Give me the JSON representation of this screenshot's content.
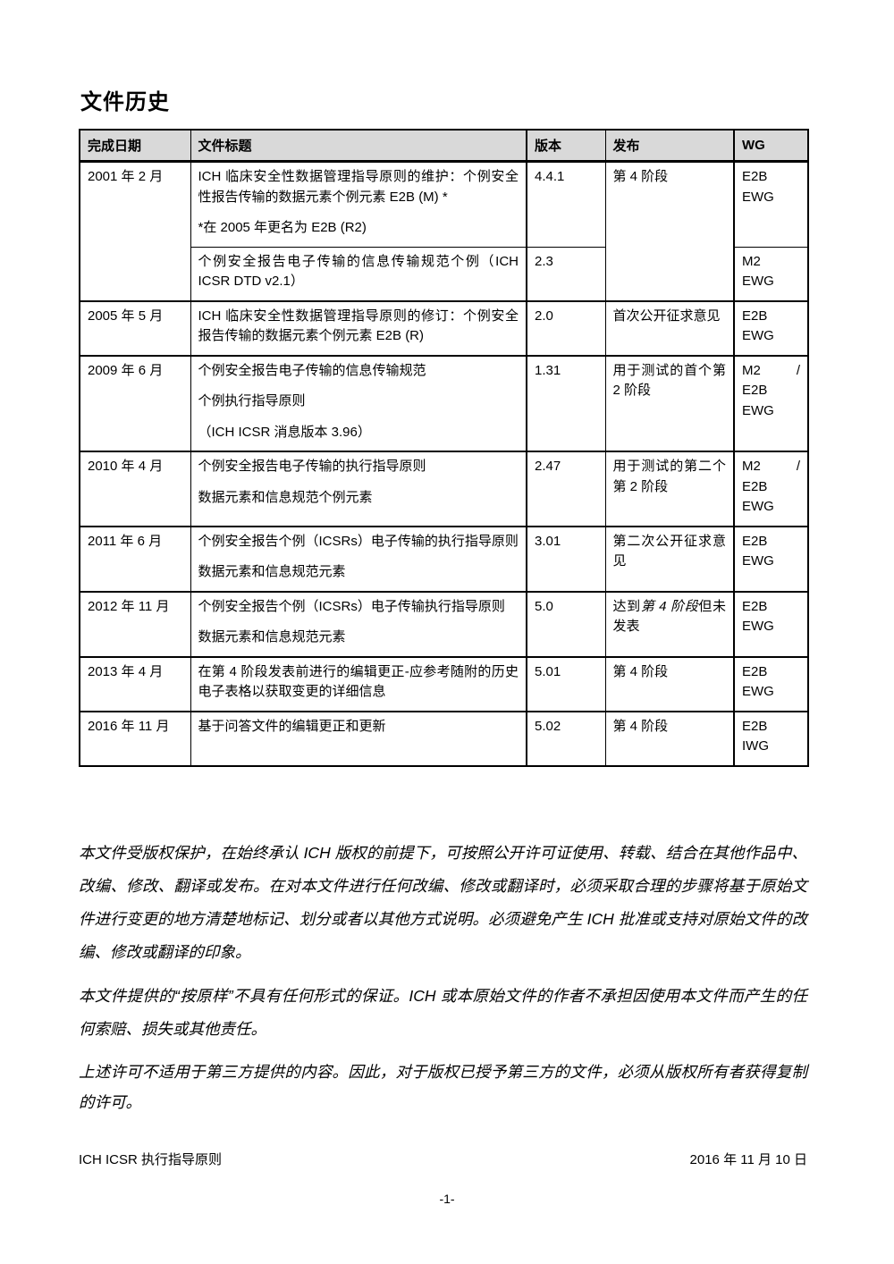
{
  "page_title": "文件历史",
  "colors": {
    "header_bg": "#d9d9d9",
    "border": "#000000",
    "text": "#000000"
  },
  "table": {
    "headers": [
      "完成日期",
      "文件标题",
      "版本",
      "发布",
      "WG"
    ],
    "rows": [
      {
        "group_start": true,
        "cells": {
          "date": {
            "text": "2001 年 2 月",
            "rowspan": 2
          },
          "title": {
            "paragraphs": [
              "ICH 临床安全性数据管理指导原则的维护：个例安全性报告传输的数据元素个例元素 E2B (M) *",
              "*在 2005 年更名为 E2B (R2)"
            ]
          },
          "version": {
            "text": "4.4.1"
          },
          "release": {
            "text": "第 4 阶段",
            "rowspan": 2
          },
          "wg": {
            "lines": [
              [
                "E2B"
              ],
              [
                "EWG"
              ]
            ]
          }
        }
      },
      {
        "cells": {
          "title": {
            "paragraphs": [
              "个例安全报告电子传输的信息传输规范个例（ICH ICSR DTD v2.1）"
            ]
          },
          "version": {
            "text": "2.3"
          },
          "wg": {
            "lines": [
              [
                "M2"
              ],
              [
                "EWG"
              ]
            ]
          }
        }
      },
      {
        "group_start": true,
        "cells": {
          "date": {
            "text": "2005 年 5 月"
          },
          "title": {
            "paragraphs": [
              "ICH 临床安全性数据管理指导原则的修订：个例安全报告传输的数据元素个例元素 E2B (R)"
            ]
          },
          "version": {
            "text": "2.0"
          },
          "release": {
            "text": "首次公开征求意见"
          },
          "wg": {
            "lines": [
              [
                "E2B"
              ],
              [
                "EWG"
              ]
            ]
          }
        }
      },
      {
        "group_start": true,
        "cells": {
          "date": {
            "text": "2009 年 6 月"
          },
          "title": {
            "paragraphs": [
              "个例安全报告电子传输的信息传输规范",
              "个例执行指导原则",
              "（ICH ICSR 消息版本 3.96）"
            ]
          },
          "version": {
            "text": "1.31"
          },
          "release": {
            "text": "用于测试的首个第 2 阶段"
          },
          "wg": {
            "lines": [
              [
                "M2",
                "/"
              ],
              [
                "E2B"
              ],
              [
                "EWG"
              ]
            ]
          }
        }
      },
      {
        "group_start": true,
        "cells": {
          "date": {
            "text": "2010 年 4 月"
          },
          "title": {
            "paragraphs": [
              "个例安全报告电子传输的执行指导原则",
              "数据元素和信息规范个例元素"
            ]
          },
          "version": {
            "text": "2.47"
          },
          "release": {
            "text": "用于测试的第二个第 2 阶段"
          },
          "wg": {
            "lines": [
              [
                "M2",
                "/"
              ],
              [
                "E2B"
              ],
              [
                "EWG"
              ]
            ]
          }
        }
      },
      {
        "group_start": true,
        "cells": {
          "date": {
            "text": "2011 年 6 月"
          },
          "title": {
            "paragraphs": [
              "个例安全报告个例（ICSRs）电子传输的执行指导原则",
              "数据元素和信息规范元素"
            ]
          },
          "version": {
            "text": "3.01"
          },
          "release": {
            "text": "第二次公开征求意见"
          },
          "wg": {
            "lines": [
              [
                "E2B"
              ],
              [
                "EWG"
              ]
            ]
          }
        }
      },
      {
        "group_start": true,
        "cells": {
          "date": {
            "text": "2012 年 11 月"
          },
          "title": {
            "paragraphs": [
              "个例安全报告个例（ICSRs）电子传输执行指导原则",
              "数据元素和信息规范元素"
            ]
          },
          "version": {
            "text": "5.0"
          },
          "release": {
            "segments": [
              {
                "text": "达到"
              },
              {
                "text": "第 4 阶段",
                "italic": true
              },
              {
                "text": "但未发表"
              }
            ]
          },
          "wg": {
            "lines": [
              [
                "E2B"
              ],
              [
                "EWG"
              ]
            ]
          }
        }
      },
      {
        "group_start": true,
        "cells": {
          "date": {
            "text": "2013 年 4 月"
          },
          "title": {
            "paragraphs": [
              "在第 4 阶段发表前进行的编辑更正-应参考随附的历史电子表格以获取变更的详细信息"
            ]
          },
          "version": {
            "text": "5.01"
          },
          "release": {
            "text": "第 4 阶段"
          },
          "wg": {
            "lines": [
              [
                "E2B"
              ],
              [
                "EWG"
              ]
            ]
          }
        }
      },
      {
        "group_start": true,
        "cells": {
          "date": {
            "text": "2016 年 11 月"
          },
          "title": {
            "paragraphs": [
              "基于问答文件的编辑更正和更新"
            ]
          },
          "version": {
            "text": "5.02"
          },
          "release": {
            "text": "第 4 阶段"
          },
          "wg": {
            "lines": [
              [
                "E2B"
              ],
              [
                "IWG"
              ]
            ]
          }
        }
      }
    ]
  },
  "copyright": [
    "本文件受版权保护，在始终承认 ICH 版权的前提下，可按照公开许可证使用、转载、结合在其他作品中、改编、修改、翻译或发布。在对本文件进行任何改编、修改或翻译时，必须采取合理的步骤将基于原始文件进行变更的地方清楚地标记、划分或者以其他方式说明。必须避免产生 ICH 批准或支持对原始文件的改编、修改或翻译的印象。",
    "本文件提供的“按原样”不具有任何形式的保证。ICH 或本原始文件的作者不承担因使用本文件而产生的任何索赔、损失或其他责任。",
    "上述许可不适用于第三方提供的内容。因此，对于版权已授予第三方的文件，必须从版权所有者获得复制的许可。"
  ],
  "footer": {
    "left": "ICH ICSR 执行指导原则",
    "right": "2016 年 11 月 10 日",
    "page_number": "-1-"
  }
}
